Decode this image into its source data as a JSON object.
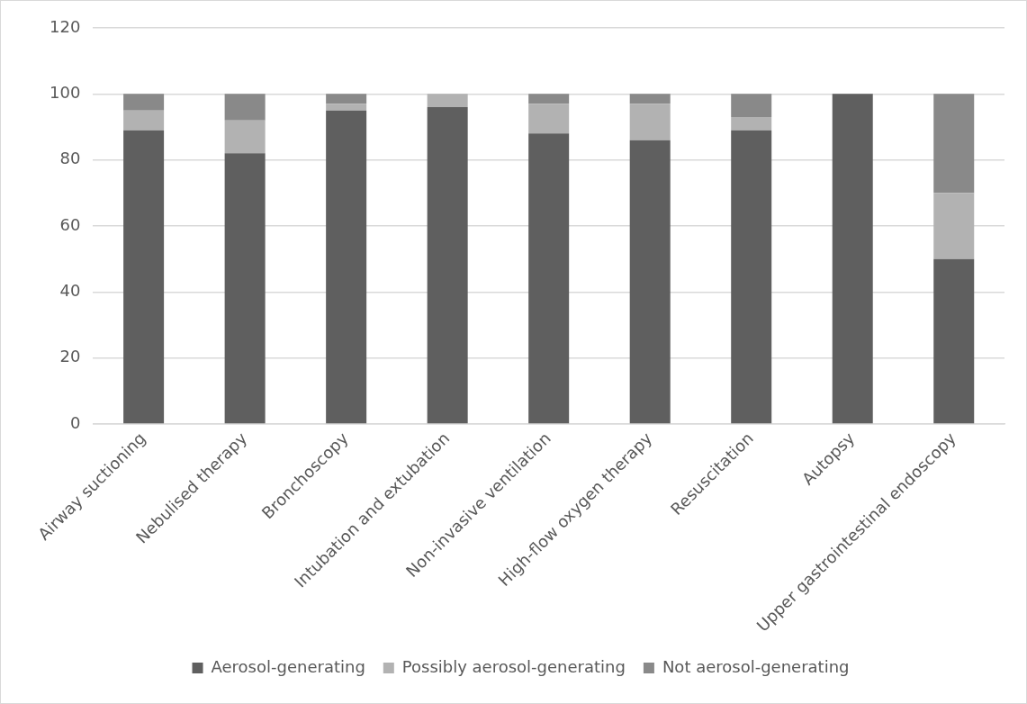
{
  "chart_data": {
    "type": "bar",
    "stacked": true,
    "categories": [
      "Airway suctioning",
      "Nebulised therapy",
      "Bronchoscopy",
      "Intubation and extubation",
      "Non-invasive ventilation",
      "High-flow oxygen therapy",
      "Resuscitation",
      "Autopsy",
      "Upper gastrointestinal endoscopy"
    ],
    "series": [
      {
        "name": "Aerosol-generating",
        "color": "#5f5f5f",
        "values": [
          89,
          82,
          95,
          96,
          88,
          86,
          89,
          100,
          50
        ]
      },
      {
        "name": "Possibly aerosol-generating",
        "color": "#b2b2b2",
        "values": [
          6,
          10,
          2,
          4,
          9,
          11,
          4,
          0,
          20
        ]
      },
      {
        "name": "Not aerosol-generating",
        "color": "#898989",
        "values": [
          5,
          8,
          3,
          0,
          3,
          3,
          7,
          0,
          30
        ]
      }
    ],
    "ylim": [
      0,
      120
    ],
    "yticks": [
      0,
      20,
      40,
      60,
      80,
      100,
      120
    ],
    "grid": "y",
    "legend": "bottom"
  }
}
